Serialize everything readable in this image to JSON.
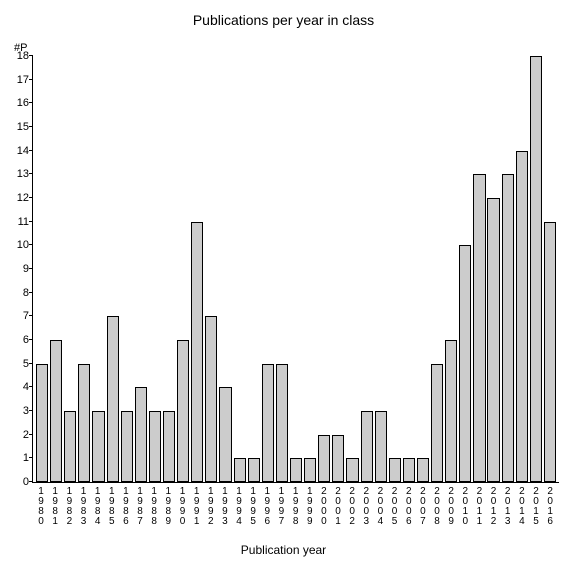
{
  "chart": {
    "type": "bar",
    "title": "Publications per year in class",
    "title_fontsize": 14,
    "ylabel": "#P",
    "xlabel": "Publication year",
    "label_fontsize": 12,
    "tick_fontsize": 11,
    "xtick_fontsize": 10,
    "background_color": "#ffffff",
    "bar_color": "#cccccc",
    "bar_border_color": "#000000",
    "axis_color": "#000000",
    "text_color": "#000000",
    "ylim": [
      0,
      18
    ],
    "ytick_step": 1,
    "bar_width": 0.86,
    "categories": [
      "1980",
      "1981",
      "1982",
      "1983",
      "1984",
      "1985",
      "1986",
      "1987",
      "1988",
      "1989",
      "1990",
      "1991",
      "1992",
      "1993",
      "1994",
      "1995",
      "1996",
      "1997",
      "1998",
      "1999",
      "2000",
      "2001",
      "2002",
      "2003",
      "2004",
      "2005",
      "2006",
      "2007",
      "2008",
      "2009",
      "2010",
      "2011",
      "2012",
      "2013",
      "2014",
      "2015",
      "2016"
    ],
    "values": [
      5,
      6,
      3,
      5,
      3,
      7,
      3,
      4,
      3,
      3,
      6,
      11,
      7,
      4,
      1,
      1,
      5,
      5,
      1,
      1,
      2,
      2,
      1,
      3,
      3,
      1,
      1,
      1,
      5,
      6,
      10,
      13,
      12,
      13,
      14,
      18,
      11
    ]
  }
}
